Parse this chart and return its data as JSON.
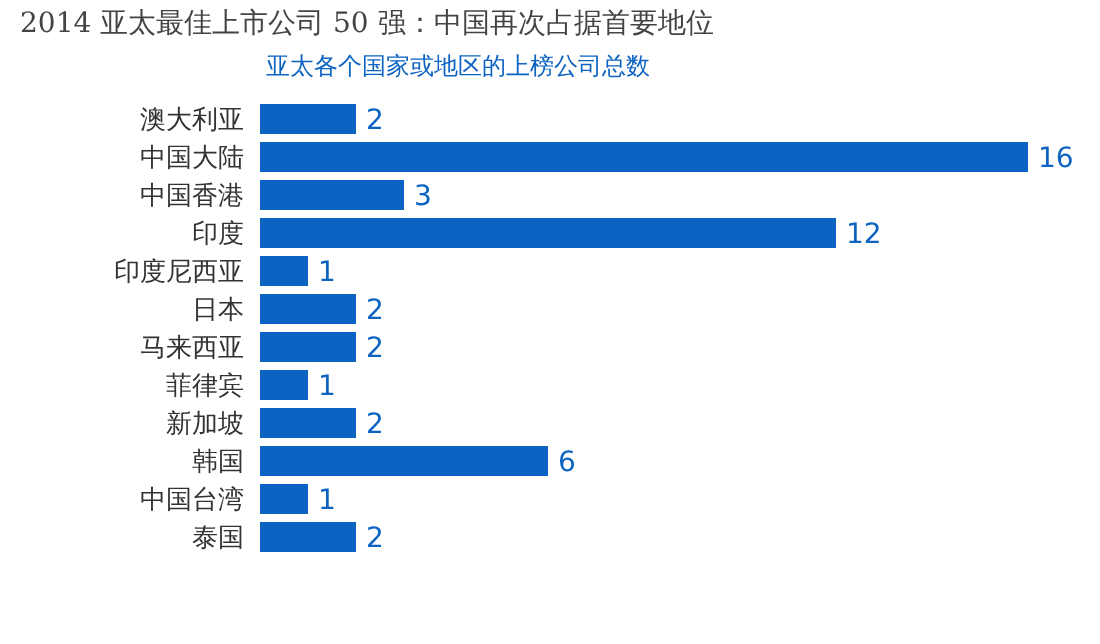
{
  "chart_data": {
    "type": "bar",
    "orientation": "horizontal",
    "title": "2014 亚太最佳上市公司 50 强：中国再次占据首要地位",
    "subtitle": "亚太各个国家或地区的上榜公司总数",
    "categories": [
      "澳大利亚",
      "中国大陆",
      "中国香港",
      "印度",
      "印度尼西亚",
      "日本",
      "马来西亚",
      "菲律宾",
      "新加坡",
      "韩国",
      "中国台湾",
      "泰国"
    ],
    "values": [
      2,
      16,
      3,
      12,
      1,
      2,
      2,
      1,
      2,
      6,
      1,
      2
    ],
    "color": "#0d63c2",
    "data_labels": true
  }
}
